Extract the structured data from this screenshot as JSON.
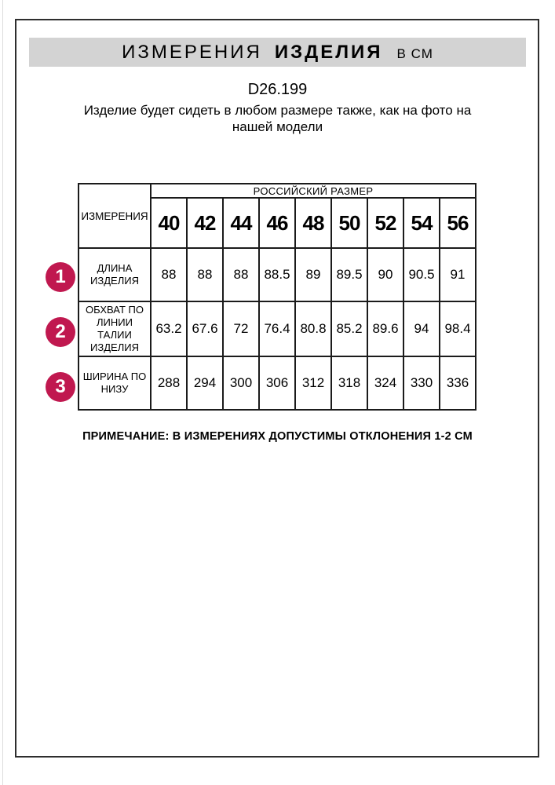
{
  "header": {
    "title_word1": "ИЗМЕРЕНИЯ",
    "title_word2": "ИЗДЕЛИЯ",
    "title_unit": "В СМ",
    "article": "D26.199",
    "description": "Изделие будет сидеть в любом размере также, как на фото на нашей модели"
  },
  "table": {
    "corner_header": "ИЗМЕРЕНИЯ",
    "group_header": "РОССИЙСКИЙ РАЗМЕР",
    "sizes": [
      "40",
      "42",
      "44",
      "46",
      "48",
      "50",
      "52",
      "54",
      "56"
    ],
    "rows": [
      {
        "num": "1",
        "label": "ДЛИНА ИЗДЕЛИЯ",
        "values": [
          "88",
          "88",
          "88",
          "88.5",
          "89",
          "89.5",
          "90",
          "90.5",
          "91"
        ]
      },
      {
        "num": "2",
        "label": "ОБХВАТ ПО ЛИНИИ ТАЛИИ ИЗДЕЛИЯ",
        "values": [
          "63.2",
          "67.6",
          "72",
          "76.4",
          "80.8",
          "85.2",
          "89.6",
          "94",
          "98.4"
        ]
      },
      {
        "num": "3",
        "label": "ШИРИНА ПО НИЗУ",
        "values": [
          "288",
          "294",
          "300",
          "306",
          "312",
          "318",
          "324",
          "330",
          "336"
        ]
      }
    ]
  },
  "footer": {
    "note": "ПРИМЕЧАНИЕ: В ИЗМЕРЕНИЯХ ДОПУСТИМЫ ОТКЛОНЕНИЯ 1-2 СМ"
  },
  "colors": {
    "badge": "#c0184f",
    "band": "#d3d3d3",
    "frame": "#2e2e2e",
    "table-border": "#1b1b1b"
  }
}
